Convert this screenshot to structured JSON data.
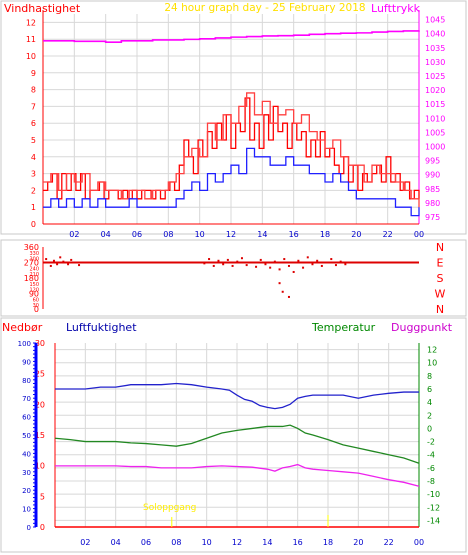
{
  "header": {
    "left_label": "Vindhastighet",
    "title": "24 hour graph day - 25 February 2018",
    "right_label": "Lufttrykk"
  },
  "labels": {
    "nedbor": "Nedbør",
    "luftfuktighet": "Luftfuktighet",
    "temperatur": "Temperatur",
    "duggpunkt": "Duggpunkt",
    "soloppgang": "Soloppgang"
  },
  "colors": {
    "wind": "#ff0000",
    "gust": "#ff4040",
    "avg_wind": "#2020ff",
    "pressure": "#ff00ff",
    "humidity": "#2222cc",
    "temperature": "#228822",
    "dewpoint": "#ee22ee",
    "rain": "#0000ff",
    "direction": "#dd0000",
    "grid": "#d8d8d8",
    "title": "#ffe000",
    "sunrise": "#ffff00"
  },
  "chart_data": [
    {
      "type": "line",
      "name": "wind",
      "x_ticks": [
        "02",
        "04",
        "06",
        "08",
        "10",
        "12",
        "14",
        "16",
        "18",
        "20",
        "22",
        "00"
      ],
      "left_axis": {
        "ticks": [
          0,
          1,
          2,
          3,
          4,
          5,
          6,
          7,
          8,
          9,
          10,
          11,
          12
        ],
        "range": [
          0,
          12.5
        ]
      },
      "right_axis": {
        "ticks": [
          975,
          980,
          985,
          990,
          995,
          1000,
          1005,
          1010,
          1015,
          1020,
          1025,
          1030,
          1035,
          1040,
          1045
        ],
        "range": [
          972.5,
          1047
        ]
      },
      "x_range": [
        0,
        24
      ],
      "series": [
        {
          "name": "Vindhastighet",
          "axis": "left",
          "x": [
            0,
            0.3,
            0.6,
            0.9,
            1.2,
            1.5,
            1.8,
            2.1,
            2.4,
            2.7,
            3,
            3.3,
            3.6,
            3.9,
            4.2,
            4.5,
            4.8,
            5.1,
            5.4,
            5.7,
            6,
            6.3,
            6.6,
            6.9,
            7.2,
            7.5,
            7.8,
            8.1,
            8.4,
            8.7,
            9,
            9.3,
            9.6,
            9.9,
            10.2,
            10.5,
            10.8,
            11.1,
            11.4,
            11.7,
            12,
            12.3,
            12.6,
            12.9,
            13.2,
            13.5,
            13.8,
            14.1,
            14.4,
            14.7,
            15,
            15.3,
            15.6,
            15.9,
            16.2,
            16.5,
            16.8,
            17.1,
            17.4,
            17.7,
            18,
            18.3,
            18.6,
            18.9,
            19.2,
            19.5,
            19.8,
            20.1,
            20.4,
            20.7,
            21,
            21.3,
            21.6,
            21.9,
            22.2,
            22.5,
            22.8,
            23.1,
            23.4,
            23.7,
            24
          ],
          "y": [
            2,
            2.5,
            3,
            1.5,
            3,
            2,
            3,
            2,
            3,
            1.5,
            2,
            2,
            2.5,
            1.5,
            2,
            2,
            1.5,
            2,
            1.5,
            2,
            1.5,
            2,
            2,
            1.5,
            2,
            1.5,
            2,
            2.5,
            2,
            3.5,
            5,
            4,
            3,
            5,
            4,
            5.5,
            4.5,
            6,
            5,
            6.5,
            4.5,
            6,
            5.5,
            7.5,
            5,
            6,
            4.5,
            6.5,
            5,
            7,
            5.5,
            6,
            4.5,
            6,
            5,
            5.5,
            4,
            5,
            4,
            5.5,
            4,
            4.5,
            3.5,
            3,
            4,
            2.5,
            3.5,
            2,
            3,
            2.5,
            3,
            3.5,
            2.5,
            4,
            2.5,
            3,
            2,
            2.5,
            1.5,
            2,
            1.5
          ]
        },
        {
          "name": "Kast",
          "axis": "left",
          "x": [
            0,
            0.5,
            1,
            1.5,
            2,
            2.5,
            3,
            3.5,
            4,
            4.5,
            5,
            5.5,
            6,
            6.5,
            7,
            7.5,
            8,
            8.5,
            9,
            9.5,
            10,
            10.5,
            11,
            11.5,
            12,
            12.5,
            13,
            13.5,
            14,
            14.5,
            15,
            15.5,
            16,
            16.5,
            17,
            17.5,
            18,
            18.5,
            19,
            19.5,
            20,
            20.5,
            21,
            21.5,
            22,
            22.5,
            23,
            23.5,
            24
          ],
          "y": [
            2.5,
            3,
            2,
            3,
            2.5,
            3,
            2,
            2.5,
            2,
            2,
            1.5,
            2,
            2,
            1.5,
            2,
            2,
            2.5,
            3,
            4,
            4.5,
            4,
            6,
            5,
            6.5,
            6,
            7,
            7.8,
            6.5,
            7.3,
            6,
            6.5,
            6.8,
            6,
            6.5,
            5.5,
            5,
            4.5,
            5,
            4,
            3.5,
            3.5,
            2.5,
            3.5,
            3,
            3,
            2.5,
            2,
            1.5,
            1
          ]
        },
        {
          "name": "Middelvind",
          "axis": "left",
          "x": [
            0,
            0.5,
            1,
            1.5,
            2,
            2.5,
            3,
            3.5,
            4,
            4.5,
            5,
            5.5,
            6,
            6.5,
            7,
            7.5,
            8,
            8.5,
            9,
            9.5,
            10,
            10.5,
            11,
            11.5,
            12,
            12.5,
            13,
            13.5,
            14,
            14.5,
            15,
            15.5,
            16,
            16.5,
            17,
            17.5,
            18,
            18.5,
            19,
            19.5,
            20,
            20.5,
            21,
            21.5,
            22,
            22.5,
            23,
            23.5,
            24
          ],
          "y": [
            1,
            1.5,
            1,
            1.5,
            1,
            1.5,
            1,
            1.5,
            1,
            1,
            1,
            1.5,
            1,
            1,
            1,
            1,
            1,
            1.5,
            2,
            2.5,
            2,
            3,
            2.5,
            3,
            3.5,
            3,
            4.5,
            4,
            4,
            3.5,
            3.5,
            4,
            3.5,
            3.5,
            3,
            3,
            2.5,
            3,
            2.5,
            2,
            1.5,
            1.5,
            1.5,
            1.5,
            1.5,
            1,
            1,
            0.5,
            1
          ]
        },
        {
          "name": "Lufttrykk",
          "axis": "right",
          "x": [
            0,
            1,
            2,
            3,
            4,
            5,
            6,
            7,
            8,
            9,
            10,
            11,
            12,
            13,
            14,
            15,
            16,
            17,
            18,
            19,
            20,
            21,
            22,
            23,
            24
          ],
          "y": [
            1037.5,
            1037.5,
            1037.3,
            1037.3,
            1037,
            1037.5,
            1037.5,
            1037.8,
            1037.8,
            1038,
            1038.2,
            1038.5,
            1038.8,
            1039,
            1039.2,
            1039.3,
            1039.5,
            1039.8,
            1040,
            1040.2,
            1040.3,
            1040.6,
            1040.8,
            1041,
            1041.2
          ]
        }
      ]
    },
    {
      "type": "scatter",
      "name": "wind-direction",
      "y_ticks": [
        0,
        90,
        180,
        270,
        360
      ],
      "y_minor_ticks": [
        30,
        60,
        120,
        150,
        210,
        240,
        300,
        330
      ],
      "compass": [
        "N",
        "W",
        "S",
        "E",
        "N"
      ],
      "y_range": [
        0,
        360
      ],
      "x_range": [
        0,
        24
      ],
      "line_value": 270,
      "points_x": [
        0.2,
        0.5,
        0.7,
        0.9,
        1.1,
        1.3,
        1.6,
        1.8,
        2.1,
        2.3,
        10.3,
        10.6,
        10.9,
        11.2,
        11.5,
        11.8,
        12.1,
        12.4,
        12.7,
        13,
        13.3,
        13.6,
        13.9,
        14.2,
        14.5,
        14.8,
        15.1,
        15.4,
        15.7,
        16,
        16.3,
        16.6,
        16.9,
        17.2,
        17.5,
        17.8,
        18.1,
        18.4,
        18.7,
        19,
        19.3,
        15.3,
        15.7,
        15.1
      ],
      "points_y": [
        290,
        250,
        280,
        260,
        300,
        275,
        260,
        285,
        270,
        255,
        265,
        290,
        250,
        280,
        260,
        285,
        250,
        275,
        295,
        255,
        270,
        245,
        285,
        260,
        240,
        275,
        230,
        290,
        250,
        215,
        280,
        240,
        300,
        260,
        280,
        250,
        270,
        290,
        255,
        275,
        260,
        100,
        70,
        150
      ]
    },
    {
      "type": "line",
      "name": "humidity-temperature",
      "x_ticks": [
        "02",
        "04",
        "06",
        "08",
        "10",
        "12",
        "14",
        "16",
        "18",
        "20",
        "22",
        "00"
      ],
      "rain_axis": {
        "ticks": [
          0,
          10,
          20,
          30,
          40,
          50,
          60,
          70,
          80,
          90,
          100
        ],
        "range": [
          0,
          100
        ]
      },
      "humidity_axis": {
        "ticks": [
          0,
          5,
          10,
          15,
          20,
          25,
          30
        ],
        "range": [
          0,
          30
        ]
      },
      "temperature_axis": {
        "ticks": [
          -14,
          -12,
          -10,
          -8,
          -6,
          -4,
          -2,
          0,
          2,
          4,
          6,
          8,
          10,
          12
        ],
        "range": [
          -15,
          13
        ]
      },
      "x_range": [
        0,
        24
      ],
      "sunrise_x": 7.7,
      "marker_x": 18,
      "series": [
        {
          "name": "Luftfuktighet",
          "axis": "humidity",
          "x": [
            0,
            1,
            2,
            3,
            4,
            5,
            6,
            7,
            8,
            9,
            10,
            11,
            11.5,
            12,
            12.5,
            13,
            13.5,
            14,
            14.5,
            15,
            15.5,
            16,
            16.5,
            17,
            18,
            19,
            20,
            21,
            22,
            23,
            24
          ],
          "y": [
            22.5,
            22.5,
            22.5,
            22.8,
            22.8,
            23.2,
            23.2,
            23.2,
            23.4,
            23.2,
            22.8,
            22.5,
            22.3,
            21.5,
            20.8,
            20.5,
            19.8,
            19.5,
            19.3,
            19.5,
            20,
            21,
            21.3,
            21.5,
            21.5,
            21.5,
            21,
            21.5,
            21.8,
            22,
            22
          ]
        },
        {
          "name": "Temperatur",
          "axis": "temperature",
          "x": [
            0,
            1,
            2,
            3,
            4,
            5,
            6,
            7,
            8,
            9,
            10,
            11,
            12,
            13,
            14,
            15,
            15.5,
            16,
            16.5,
            17,
            18,
            19,
            20,
            21,
            22,
            23,
            24
          ],
          "y": [
            -1.5,
            -1.7,
            -2,
            -2,
            -2,
            -2.2,
            -2.3,
            -2.5,
            -2.7,
            -2.3,
            -1.5,
            -0.7,
            -0.3,
            0,
            0.3,
            0.3,
            0.5,
            0,
            -0.7,
            -1,
            -1.7,
            -2.5,
            -3,
            -3.5,
            -4,
            -4.5,
            -5.3
          ]
        },
        {
          "name": "Duggpunkt",
          "axis": "temperature",
          "x": [
            0,
            1,
            2,
            3,
            4,
            5,
            6,
            7,
            8,
            9,
            10,
            11,
            12,
            13,
            14,
            14.5,
            15,
            15.5,
            16,
            16.5,
            17,
            18,
            19,
            20,
            21,
            22,
            23,
            24
          ],
          "y": [
            -5.7,
            -5.7,
            -5.7,
            -5.7,
            -5.7,
            -5.8,
            -5.8,
            -6,
            -6,
            -6,
            -5.8,
            -5.7,
            -5.8,
            -5.9,
            -6.2,
            -6.5,
            -6,
            -5.8,
            -5.5,
            -6,
            -6.2,
            -6.4,
            -6.6,
            -6.8,
            -7.3,
            -7.8,
            -8.2,
            -8.8
          ]
        }
      ]
    }
  ]
}
